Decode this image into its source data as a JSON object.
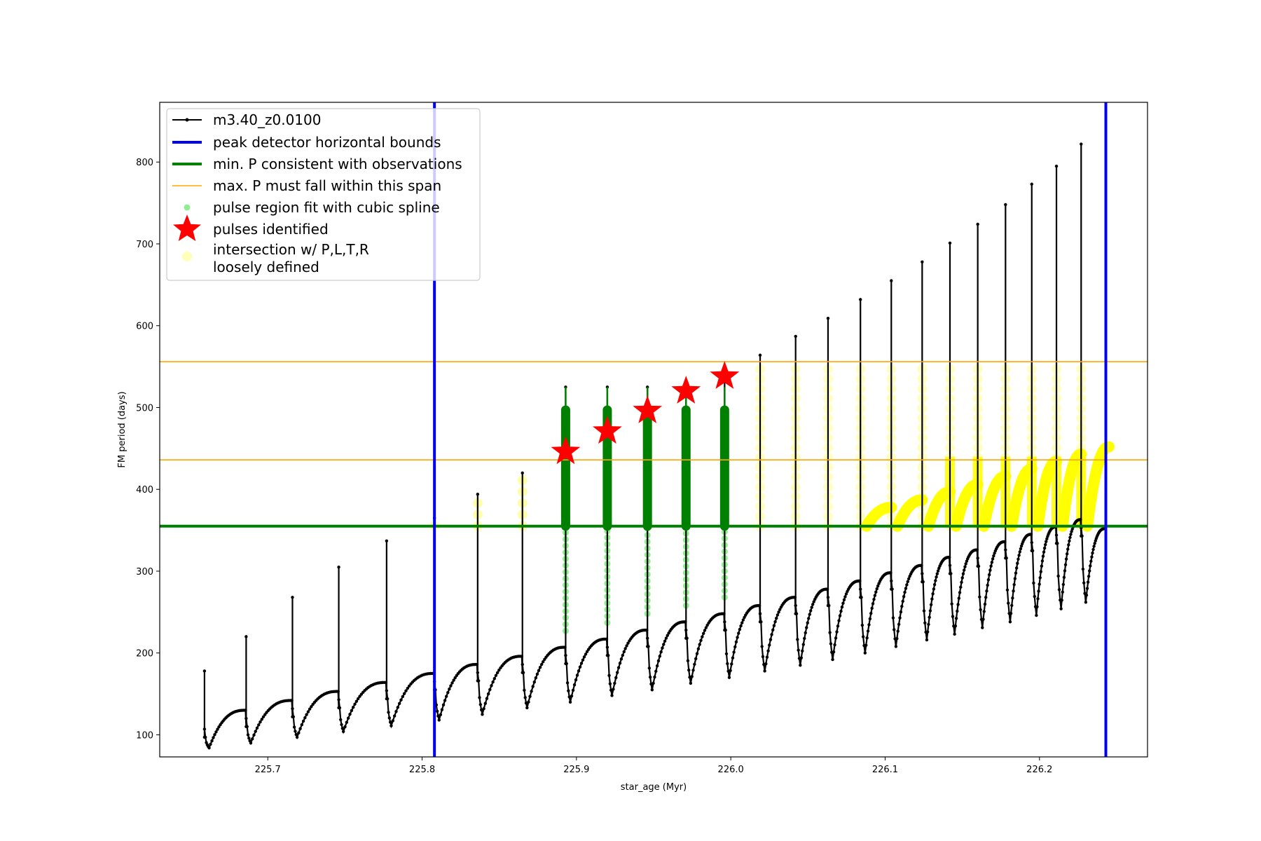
{
  "chart_data": {
    "type": "line",
    "xlabel": "star_age (Myr)",
    "ylabel": "FM period (days)",
    "xlim": [
      225.63,
      226.27
    ],
    "ylim": [
      73,
      873
    ],
    "xticks": [
      "225.7",
      "225.8",
      "225.9",
      "226.0",
      "226.1",
      "226.2"
    ],
    "yticks": [
      "100",
      "200",
      "300",
      "400",
      "500",
      "600",
      "700",
      "800"
    ],
    "grid": false,
    "legend_position": "top-left",
    "legend": [
      {
        "label": "m3.40_z0.0100",
        "style": "black-line-dots"
      },
      {
        "label": "peak detector horizontal bounds",
        "style": "blue-line"
      },
      {
        "label": "min. P consistent with observations",
        "style": "green-line"
      },
      {
        "label": "max. P must fall within this span",
        "style": "orange-line"
      },
      {
        "label": "pulse region fit with cubic spline",
        "style": "lightgreen-dot"
      },
      {
        "label": "pulses identified",
        "style": "red-star"
      },
      {
        "label": "intersection w/ P,L,T,R",
        "label2": "loosely defined",
        "style": "yellow-dot"
      }
    ],
    "vertical_bounds_x": [
      225.808,
      226.243
    ],
    "min_period": 355,
    "max_period_span": [
      436,
      556
    ],
    "cycles": [
      {
        "t": 225.659,
        "drop": 97,
        "base": 84,
        "peak": 178
      },
      {
        "t": 225.686,
        "drop": 110,
        "base": 90,
        "peak": 220
      },
      {
        "t": 225.716,
        "drop": 122,
        "base": 97,
        "peak": 268
      },
      {
        "t": 225.746,
        "drop": 133,
        "base": 104,
        "peak": 305
      },
      {
        "t": 225.777,
        "drop": 144,
        "base": 111,
        "peak": 337
      },
      {
        "t": 225.808,
        "drop": 155,
        "base": 118,
        "peak": 365
      },
      {
        "t": 225.836,
        "drop": 166,
        "base": 125,
        "peak": 394
      },
      {
        "t": 225.865,
        "drop": 176,
        "base": 133,
        "peak": 420
      },
      {
        "t": 225.893,
        "drop": 187,
        "base": 140,
        "peak": 525
      },
      {
        "t": 225.92,
        "drop": 197,
        "base": 148,
        "peak": 525
      },
      {
        "t": 225.946,
        "drop": 208,
        "base": 155,
        "peak": 525
      },
      {
        "t": 225.971,
        "drop": 218,
        "base": 163,
        "peak": 516
      },
      {
        "t": 225.996,
        "drop": 228,
        "base": 170,
        "peak": 541
      },
      {
        "t": 226.019,
        "drop": 238,
        "base": 178,
        "peak": 564
      },
      {
        "t": 226.042,
        "drop": 248,
        "base": 185,
        "peak": 587
      },
      {
        "t": 226.063,
        "drop": 258,
        "base": 192,
        "peak": 609
      },
      {
        "t": 226.084,
        "drop": 268,
        "base": 200,
        "peak": 632
      },
      {
        "t": 226.104,
        "drop": 278,
        "base": 208,
        "peak": 655
      },
      {
        "t": 226.124,
        "drop": 287,
        "base": 216,
        "peak": 678
      },
      {
        "t": 226.142,
        "drop": 297,
        "base": 223,
        "peak": 701
      },
      {
        "t": 226.16,
        "drop": 306,
        "base": 231,
        "peak": 724
      },
      {
        "t": 226.178,
        "drop": 316,
        "base": 238,
        "peak": 748
      },
      {
        "t": 226.195,
        "drop": 325,
        "base": 246,
        "peak": 773
      },
      {
        "t": 226.211,
        "drop": 334,
        "base": 254,
        "peak": 795
      },
      {
        "t": 226.227,
        "drop": 343,
        "base": 262,
        "peak": 822
      }
    ],
    "green_pulse_ages": [
      225.893,
      225.92,
      225.946,
      225.971,
      225.996
    ],
    "green_pulse_upper": 497,
    "pulses_identified": [
      {
        "x": 225.893,
        "y": 446
      },
      {
        "x": 225.92,
        "y": 471
      },
      {
        "x": 225.946,
        "y": 496
      },
      {
        "x": 225.971,
        "y": 520
      },
      {
        "x": 225.996,
        "y": 538
      }
    ]
  }
}
